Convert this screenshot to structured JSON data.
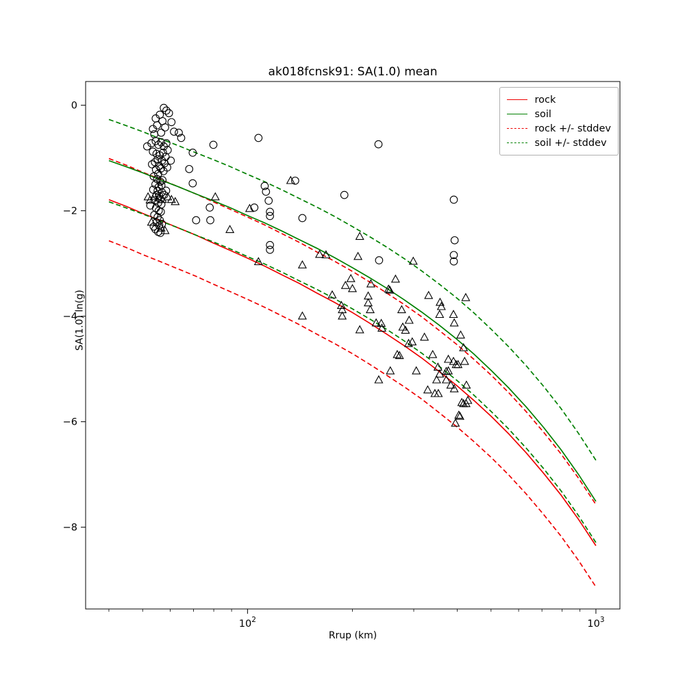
{
  "figure": {
    "background": "#ffffff",
    "frame_color": "#000000"
  },
  "chart_data": {
    "type": "scatter",
    "title": "ak018fcnsk91: SA(1.0) mean",
    "xlabel": "Rrup (km)",
    "ylabel": "SA(1.0) ln(g)",
    "x_scale": "log",
    "grid": false,
    "xlim": [
      34.3,
      1172
    ],
    "ylim": [
      -9.55,
      0.45
    ],
    "yticks": [
      {
        "v": 0,
        "label": "0"
      },
      {
        "v": -2,
        "label": "−2"
      },
      {
        "v": -4,
        "label": "−4"
      },
      {
        "v": -6,
        "label": "−6"
      },
      {
        "v": -8,
        "label": "−8"
      }
    ],
    "xticks": [
      {
        "v": 100,
        "base": "10",
        "exp": "2"
      },
      {
        "v": 1000,
        "base": "10",
        "exp": "3"
      }
    ],
    "minor_xticks": [
      40,
      50,
      60,
      70,
      80,
      90,
      200,
      300,
      400,
      500,
      600,
      700,
      800,
      900
    ],
    "legend": {
      "position": "upper right",
      "entries": [
        {
          "label": "rock",
          "color": "#ee0000",
          "style": "solid"
        },
        {
          "label": "soil",
          "color": "#008000",
          "style": "solid"
        },
        {
          "label": "rock +/- stddev",
          "color": "#ee0000",
          "style": "dashed"
        },
        {
          "label": "soil +/- stddev",
          "color": "#008000",
          "style": "dashed"
        }
      ]
    },
    "curves": [
      {
        "name": "rock",
        "color": "#ee0000",
        "stddev": 0.78,
        "x": [
          40,
          45,
          50,
          56,
          63,
          71,
          79,
          89,
          100,
          112,
          126,
          141,
          158,
          178,
          200,
          224,
          251,
          282,
          316,
          355,
          398,
          447,
          501,
          562,
          631,
          708,
          794,
          891,
          1000
        ],
        "y": [
          -1.79,
          -1.92,
          -2.05,
          -2.18,
          -2.32,
          -2.46,
          -2.6,
          -2.75,
          -2.9,
          -3.05,
          -3.22,
          -3.38,
          -3.56,
          -3.74,
          -3.93,
          -4.13,
          -4.34,
          -4.56,
          -4.79,
          -5.05,
          -5.31,
          -5.6,
          -5.9,
          -6.23,
          -6.59,
          -6.98,
          -7.39,
          -7.85,
          -8.35
        ]
      },
      {
        "name": "soil",
        "color": "#008000",
        "stddev": 0.78,
        "x": [
          40,
          45,
          50,
          56,
          63,
          71,
          79,
          89,
          100,
          112,
          126,
          141,
          158,
          178,
          200,
          224,
          251,
          282,
          316,
          355,
          398,
          447,
          501,
          562,
          631,
          708,
          794,
          891,
          1000
        ],
        "y": [
          -1.05,
          -1.17,
          -1.28,
          -1.41,
          -1.54,
          -1.68,
          -1.8,
          -1.94,
          -2.09,
          -2.23,
          -2.39,
          -2.55,
          -2.71,
          -2.89,
          -3.08,
          -3.27,
          -3.47,
          -3.69,
          -3.92,
          -4.17,
          -4.43,
          -4.72,
          -5.03,
          -5.36,
          -5.72,
          -6.11,
          -6.53,
          -7.0,
          -7.51
        ]
      }
    ],
    "scatter_series": [
      {
        "name": "records-circles",
        "marker": "circle",
        "edge_color": "#000000",
        "fill": "none",
        "points": [
          [
            57.5,
            -0.05
          ],
          [
            58.5,
            -0.1
          ],
          [
            56.0,
            -0.18
          ],
          [
            59.5,
            -0.15
          ],
          [
            54.5,
            -0.25
          ],
          [
            60.5,
            -0.32
          ],
          [
            57.0,
            -0.3
          ],
          [
            55.0,
            -0.38
          ],
          [
            58.0,
            -0.42
          ],
          [
            53.5,
            -0.45
          ],
          [
            61.5,
            -0.5
          ],
          [
            56.5,
            -0.52
          ],
          [
            63.5,
            -0.52
          ],
          [
            54.0,
            -0.55
          ],
          [
            64.5,
            -0.62
          ],
          [
            51.5,
            -0.78
          ],
          [
            53.0,
            -0.72
          ],
          [
            54.5,
            -0.68
          ],
          [
            55.5,
            -0.75
          ],
          [
            56.5,
            -0.7
          ],
          [
            57.5,
            -0.78
          ],
          [
            58.5,
            -0.72
          ],
          [
            59.0,
            -0.85
          ],
          [
            53.5,
            -0.88
          ],
          [
            54.8,
            -0.92
          ],
          [
            56.0,
            -0.95
          ],
          [
            57.2,
            -0.9
          ],
          [
            58.2,
            -0.98
          ],
          [
            55.2,
            -1.02
          ],
          [
            56.8,
            -1.05
          ],
          [
            54.2,
            -1.08
          ],
          [
            57.8,
            -1.1
          ],
          [
            53.2,
            -1.12
          ],
          [
            55.8,
            -1.15
          ],
          [
            56.4,
            -1.2
          ],
          [
            54.6,
            -1.22
          ],
          [
            57.4,
            -1.25
          ],
          [
            55.4,
            -1.3
          ],
          [
            58.8,
            -1.18
          ],
          [
            60.2,
            -1.05
          ],
          [
            53.8,
            -1.35
          ],
          [
            55.0,
            -1.4
          ],
          [
            56.2,
            -1.45
          ],
          [
            57.0,
            -1.42
          ],
          [
            54.4,
            -1.5
          ],
          [
            55.6,
            -1.55
          ],
          [
            56.6,
            -1.52
          ],
          [
            53.6,
            -1.6
          ],
          [
            55.2,
            -1.62
          ],
          [
            56.8,
            -1.65
          ],
          [
            54.8,
            -1.7
          ],
          [
            55.8,
            -1.72
          ],
          [
            56.2,
            -1.78
          ],
          [
            54.2,
            -1.8
          ],
          [
            55.4,
            -1.85
          ],
          [
            56.6,
            -1.88
          ],
          [
            57.6,
            -1.7
          ],
          [
            58.4,
            -1.62
          ],
          [
            52.6,
            -1.9
          ],
          [
            54.6,
            -1.95
          ],
          [
            55.6,
            -2.0
          ],
          [
            56.4,
            -2.02
          ],
          [
            54.0,
            -2.08
          ],
          [
            55.2,
            -2.12
          ],
          [
            56.0,
            -2.18
          ],
          [
            54.8,
            -2.22
          ],
          [
            55.8,
            -2.28
          ],
          [
            56.8,
            -2.25
          ],
          [
            54.4,
            -2.35
          ],
          [
            55.4,
            -2.4
          ],
          [
            56.2,
            -2.42
          ],
          [
            53.8,
            -2.3
          ],
          [
            68.0,
            -1.21
          ],
          [
            69.6,
            -0.9
          ],
          [
            69.6,
            -1.48
          ],
          [
            71.2,
            -2.18
          ],
          [
            79.8,
            -0.75
          ],
          [
            77.9,
            -1.94
          ],
          [
            78.2,
            -2.18
          ],
          [
            104.6,
            -1.94
          ],
          [
            107.5,
            -0.62
          ],
          [
            112,
            -1.53
          ],
          [
            113,
            -1.64
          ],
          [
            115,
            -1.81
          ],
          [
            116,
            -2.02
          ],
          [
            116,
            -2.1
          ],
          [
            116,
            -2.65
          ],
          [
            116,
            -2.74
          ],
          [
            137,
            -1.43
          ],
          [
            143.7,
            -2.14
          ],
          [
            189.6,
            -1.7
          ],
          [
            237.6,
            -0.74
          ],
          [
            238.6,
            -2.94
          ],
          [
            391,
            -1.79
          ],
          [
            393,
            -2.56
          ],
          [
            391,
            -2.84
          ],
          [
            391,
            -2.96
          ]
        ]
      },
      {
        "name": "records-triangles",
        "marker": "triangle-up",
        "edge_color": "#000000",
        "fill": "none",
        "points": [
          [
            51.8,
            -1.74
          ],
          [
            52.5,
            -1.8
          ],
          [
            54.0,
            -1.73
          ],
          [
            55.5,
            -1.76
          ],
          [
            57.0,
            -1.79
          ],
          [
            59.0,
            -1.74
          ],
          [
            60.5,
            -1.79
          ],
          [
            62.0,
            -1.83
          ],
          [
            53.0,
            -2.22
          ],
          [
            56.5,
            -2.33
          ],
          [
            58.0,
            -2.38
          ],
          [
            80.8,
            -1.74
          ],
          [
            101.4,
            -1.96
          ],
          [
            89.0,
            -2.36
          ],
          [
            107.5,
            -2.97
          ],
          [
            133,
            -1.43
          ],
          [
            143.7,
            -3.03
          ],
          [
            143.7,
            -4.0
          ],
          [
            161,
            -2.83
          ],
          [
            168,
            -2.84
          ],
          [
            210,
            -2.49
          ],
          [
            207.5,
            -2.87
          ],
          [
            299,
            -2.96
          ],
          [
            198,
            -3.29
          ],
          [
            191,
            -3.42
          ],
          [
            200,
            -3.48
          ],
          [
            226,
            -3.39
          ],
          [
            266,
            -3.3
          ],
          [
            254,
            -3.49
          ],
          [
            256,
            -3.51
          ],
          [
            175,
            -3.6
          ],
          [
            331,
            -3.61
          ],
          [
            423,
            -3.65
          ],
          [
            186,
            -3.8
          ],
          [
            187,
            -3.88
          ],
          [
            187,
            -4.0
          ],
          [
            222,
            -3.62
          ],
          [
            222,
            -3.75
          ],
          [
            225,
            -3.88
          ],
          [
            210,
            -4.26
          ],
          [
            234,
            -4.13
          ],
          [
            242,
            -4.14
          ],
          [
            243,
            -4.23
          ],
          [
            357,
            -3.74
          ],
          [
            360,
            -3.82
          ],
          [
            356,
            -3.97
          ],
          [
            390,
            -3.97
          ],
          [
            392,
            -4.13
          ],
          [
            409,
            -4.36
          ],
          [
            277,
            -3.88
          ],
          [
            279,
            -4.21
          ],
          [
            284,
            -4.27
          ],
          [
            291,
            -4.08
          ],
          [
            290,
            -4.52
          ],
          [
            297,
            -4.49
          ],
          [
            322,
            -4.4
          ],
          [
            269,
            -4.73
          ],
          [
            273,
            -4.75
          ],
          [
            257,
            -5.04
          ],
          [
            305,
            -5.04
          ],
          [
            340,
            -4.73
          ],
          [
            352,
            -4.97
          ],
          [
            356,
            -5.1
          ],
          [
            372,
            -5.05
          ],
          [
            377,
            -5.04
          ],
          [
            377,
            -4.82
          ],
          [
            390,
            -4.86
          ],
          [
            397,
            -4.92
          ],
          [
            402,
            -4.92
          ],
          [
            417,
            -4.6
          ],
          [
            420,
            -4.86
          ],
          [
            238,
            -5.21
          ],
          [
            349,
            -5.21
          ],
          [
            372,
            -5.21
          ],
          [
            329,
            -5.4
          ],
          [
            345,
            -5.47
          ],
          [
            353,
            -5.47
          ],
          [
            383,
            -5.31
          ],
          [
            392,
            -5.38
          ],
          [
            412,
            -5.64
          ],
          [
            417,
            -5.66
          ],
          [
            424,
            -5.66
          ],
          [
            429,
            -5.6
          ],
          [
            425,
            -5.31
          ],
          [
            404,
            -5.88
          ],
          [
            407,
            -5.9
          ],
          [
            395,
            -6.03
          ]
        ]
      }
    ]
  }
}
